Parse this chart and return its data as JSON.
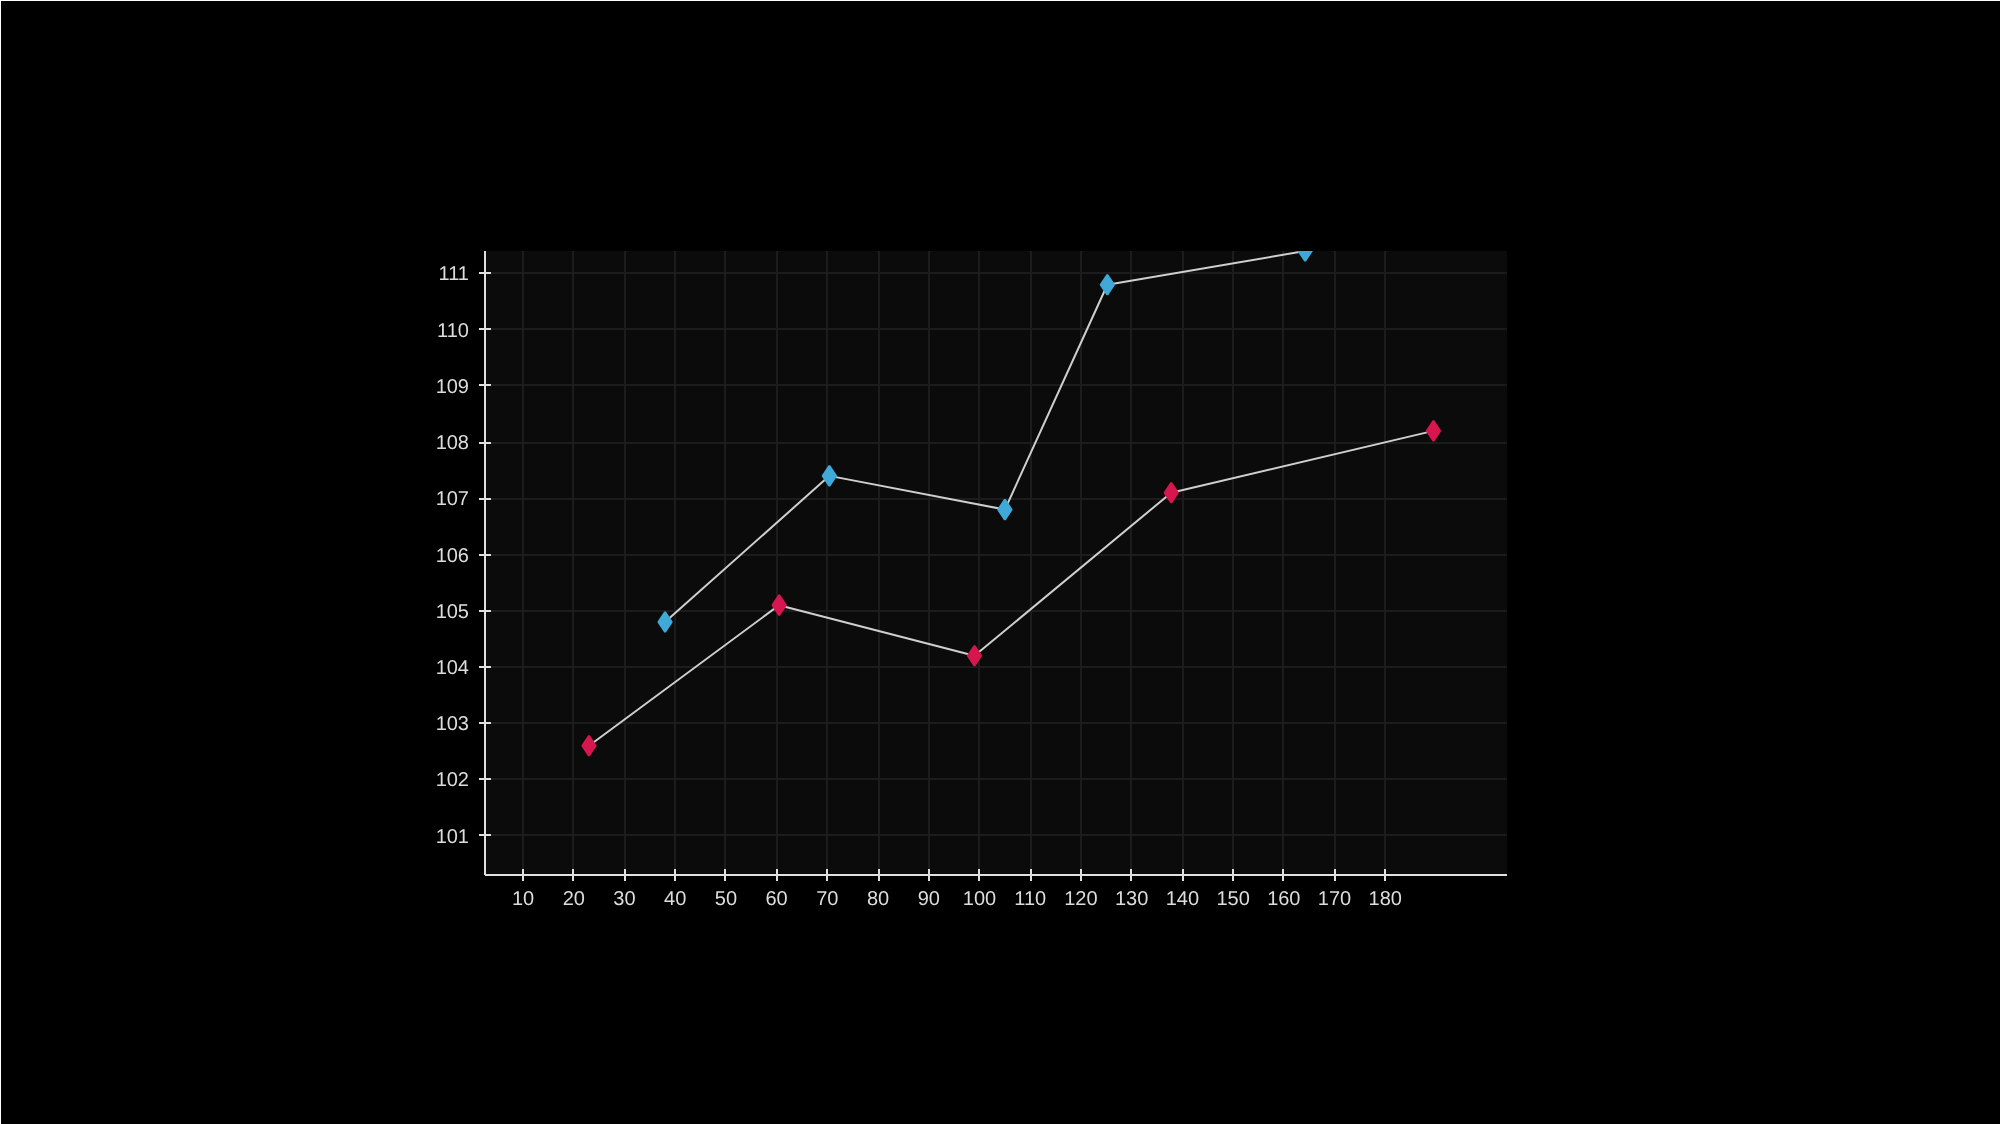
{
  "chart_data": {
    "type": "line",
    "marker": "diamond",
    "grid": true,
    "xlim": [
      2.5,
      204
    ],
    "ylim": [
      100.3,
      111.4
    ],
    "xticks": [
      10,
      20,
      30,
      40,
      50,
      60,
      70,
      80,
      90,
      100,
      110,
      120,
      130,
      140,
      150,
      160,
      170,
      180
    ],
    "yticks": [
      101,
      102,
      103,
      104,
      105,
      106,
      107,
      108,
      109,
      110,
      111
    ],
    "series": [
      {
        "color": "#3fa9d8",
        "x": [
          38,
          70.4,
          105,
          125.2,
          164.2
        ],
        "values": [
          104.8,
          107.4,
          106.8,
          110.8,
          111.4
        ]
      },
      {
        "color": "#d6174f",
        "x": [
          23,
          60.5,
          99,
          137.8,
          189.5
        ],
        "values": [
          102.6,
          105.1,
          104.2,
          107.1,
          108.2
        ]
      }
    ]
  }
}
